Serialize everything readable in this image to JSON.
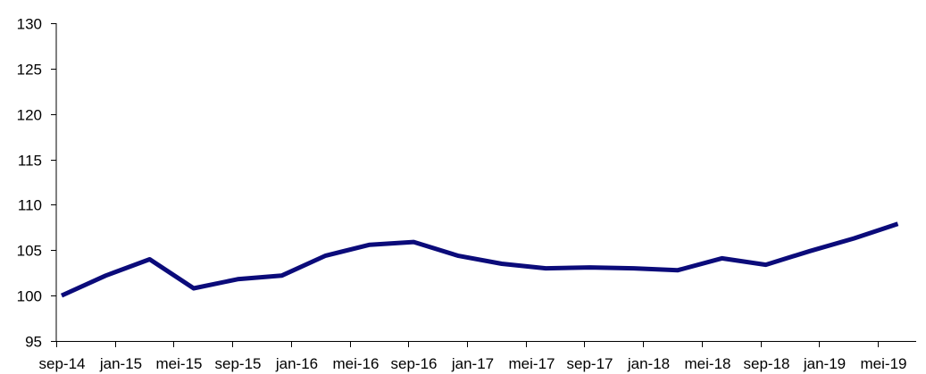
{
  "chart_data": {
    "type": "line",
    "title": "",
    "xlabel": "",
    "ylabel": "",
    "ylim": [
      95,
      130
    ],
    "y_ticks": [
      95,
      100,
      105,
      110,
      115,
      120,
      125,
      130
    ],
    "x_tick_labels": [
      "sep-14",
      "jan-15",
      "mei-15",
      "sep-15",
      "jan-16",
      "mei-16",
      "sep-16",
      "jan-17",
      "mei-17",
      "sep-17",
      "jan-18",
      "mei-18",
      "sep-18",
      "jan-19",
      "mei-19"
    ],
    "grid": false,
    "legend": "none",
    "series": [
      {
        "color": "#0b0b7a",
        "points": [
          {
            "x": "sep-14",
            "y": 100.0
          },
          {
            "x": "dec-14",
            "y": 102.2
          },
          {
            "x": "mrt-15",
            "y": 104.0
          },
          {
            "x": "jun-15",
            "y": 100.8
          },
          {
            "x": "sep-15",
            "y": 101.8
          },
          {
            "x": "dec-15",
            "y": 102.2
          },
          {
            "x": "mrt-16",
            "y": 104.4
          },
          {
            "x": "jun-16",
            "y": 105.6
          },
          {
            "x": "sep-16",
            "y": 105.9
          },
          {
            "x": "dec-16",
            "y": 104.4
          },
          {
            "x": "mrt-17",
            "y": 103.5
          },
          {
            "x": "jun-17",
            "y": 103.0
          },
          {
            "x": "sep-17",
            "y": 103.1
          },
          {
            "x": "dec-17",
            "y": 103.0
          },
          {
            "x": "mrt-18",
            "y": 102.8
          },
          {
            "x": "jun-18",
            "y": 104.1
          },
          {
            "x": "sep-18",
            "y": 103.4
          },
          {
            "x": "dec-18",
            "y": 104.9
          },
          {
            "x": "mrt-19",
            "y": 106.3
          },
          {
            "x": "jun-19",
            "y": 107.9
          }
        ]
      }
    ]
  }
}
